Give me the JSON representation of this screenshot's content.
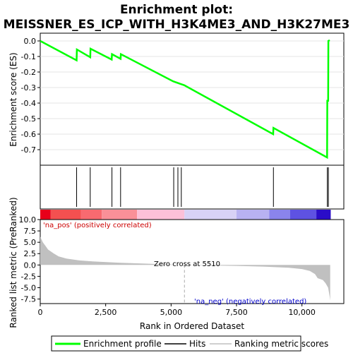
{
  "chart_data": {
    "type": "line",
    "title_line1": "Enrichment plot:",
    "title_line2": "MEISSNER_ES_ICP_WITH_H3K4ME3_AND_H3K27ME3",
    "es_panel": {
      "ylabel": "Enrichment score (ES)",
      "ylim": [
        -0.8,
        0.05
      ],
      "yticks": [
        0.0,
        -0.1,
        -0.2,
        -0.3,
        -0.4,
        -0.5,
        -0.6,
        -0.7
      ],
      "ytick_labels": [
        "0.0",
        "-0.1",
        "-0.2",
        "-0.3",
        "-0.4",
        "-0.5",
        "-0.6",
        "-0.7"
      ],
      "series_name": "Enrichment profile",
      "color": "#00ff00",
      "points": [
        [
          0,
          0.0
        ],
        [
          1390,
          -0.125
        ],
        [
          1400,
          -0.055
        ],
        [
          1910,
          -0.105
        ],
        [
          1920,
          -0.05
        ],
        [
          2730,
          -0.12
        ],
        [
          2740,
          -0.085
        ],
        [
          3070,
          -0.115
        ],
        [
          3080,
          -0.085
        ],
        [
          5080,
          -0.26
        ],
        [
          5500,
          -0.285
        ],
        [
          8900,
          -0.6
        ],
        [
          8910,
          -0.56
        ],
        [
          10960,
          -0.75
        ],
        [
          10970,
          -0.385
        ],
        [
          11000,
          -0.385
        ],
        [
          11010,
          0.0
        ],
        [
          11060,
          0.005
        ]
      ]
    },
    "hits": [
      1390,
      1910,
      2740,
      3070,
      5100,
      5260,
      5390,
      8910,
      10970,
      11010
    ],
    "color_bar": {
      "segments": [
        {
          "start": 0,
          "end": 400,
          "color": "#e8001a"
        },
        {
          "start": 400,
          "end": 1550,
          "color": "#f45050"
        },
        {
          "start": 1550,
          "end": 2350,
          "color": "#f86a70"
        },
        {
          "start": 2350,
          "end": 3700,
          "color": "#fa9098"
        },
        {
          "start": 3700,
          "end": 5510,
          "color": "#fcc0d8"
        },
        {
          "start": 5510,
          "end": 7500,
          "color": "#d8d2f6"
        },
        {
          "start": 7500,
          "end": 8750,
          "color": "#b8b2f2"
        },
        {
          "start": 8750,
          "end": 9550,
          "color": "#8a84ec"
        },
        {
          "start": 9550,
          "end": 10550,
          "color": "#5e52e2"
        },
        {
          "start": 10550,
          "end": 11100,
          "color": "#2a0cc8"
        }
      ]
    },
    "ranking_panel": {
      "ylabel": "Ranked list metric (PreRanked)",
      "ylim": [
        -8.5,
        10.0
      ],
      "yticks": [
        10.0,
        7.5,
        5.0,
        2.5,
        0.0,
        -2.5,
        -5.0,
        -7.5
      ],
      "ytick_labels": [
        "10.0",
        "7.5",
        "5.0",
        "2.5",
        "0.0",
        "-2.5",
        "-5.0",
        "-7.5"
      ],
      "series_name": "Ranking metric scores",
      "color": "#c0c0c0",
      "points": [
        [
          0,
          6.2
        ],
        [
          100,
          5.0
        ],
        [
          200,
          4.2
        ],
        [
          300,
          3.4
        ],
        [
          400,
          3.0
        ],
        [
          500,
          2.6
        ],
        [
          700,
          1.9
        ],
        [
          1000,
          1.4
        ],
        [
          1500,
          1.0
        ],
        [
          2000,
          0.8
        ],
        [
          3000,
          0.5
        ],
        [
          4000,
          0.3
        ],
        [
          5000,
          0.1
        ],
        [
          5510,
          0.0
        ],
        [
          6500,
          -0.1
        ],
        [
          7500,
          -0.2
        ],
        [
          8500,
          -0.35
        ],
        [
          9500,
          -0.6
        ],
        [
          10000,
          -0.9
        ],
        [
          10300,
          -1.3
        ],
        [
          10500,
          -2.0
        ],
        [
          10600,
          -2.9
        ],
        [
          10800,
          -3.3
        ],
        [
          10900,
          -4.0
        ],
        [
          11000,
          -5.0
        ],
        [
          11060,
          -7.0
        ],
        [
          11080,
          -7.8
        ]
      ],
      "pos_label": "'na_pos' (positively correlated)",
      "neg_label": "'na_neg' (negatively correlated)",
      "zero_cross_label": "Zero cross at 5510",
      "zero_cross": 5510,
      "pos_color": "#cc0000",
      "neg_color": "#0000cc"
    },
    "xaxis": {
      "xlabel": "Rank in Ordered Dataset",
      "xlim": [
        0,
        11600
      ],
      "xticks": [
        0,
        2500,
        5000,
        7500,
        10000
      ],
      "xtick_labels": [
        "0",
        "2,500",
        "5,000",
        "7,500",
        "10,000"
      ]
    },
    "legend": [
      {
        "label": "Enrichment profile",
        "color": "#00ff00"
      },
      {
        "label": "Hits",
        "color": "#000000"
      },
      {
        "label": "Ranking metric scores",
        "color": "#c0c0c0"
      }
    ]
  }
}
